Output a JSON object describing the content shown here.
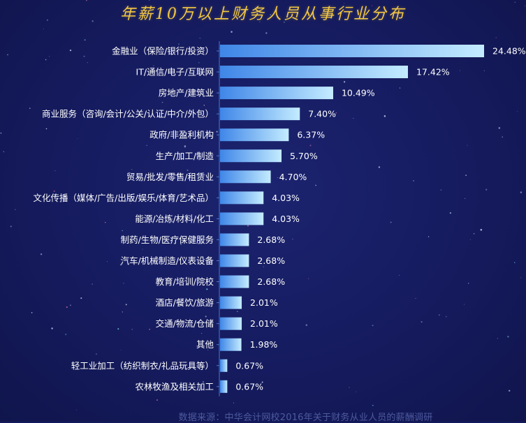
{
  "title": "年薪10万以上财务人员从事行业分布",
  "source_note": "数据来源：中华会计网校2016年关于财务从业人员的薪酬调研",
  "colors": {
    "background": "#141a5c",
    "bar_start": "#3f86e8",
    "bar_end": "#c4ecff",
    "title": "#f2c744",
    "label": "#ffffff",
    "axis": "#4a78c8",
    "source": "#4d5a9e"
  },
  "chart_data": {
    "type": "bar",
    "orientation": "horizontal",
    "title": "年薪10万以上财务人员从事行业分布",
    "categories": [
      "金融业（保险/银行/投资）",
      "IT/通信/电子/互联网",
      "房地产/建筑业",
      "商业服务（咨询/会计/公关/认证/中介/外包）",
      "政府/非盈利机构",
      "生产/加工/制造",
      "贸易/批发/零售/租赁业",
      "文化传播（媒体/广告/出版/娱乐/体育/艺术品）",
      "能源/冶炼/材料/化工",
      "制药/生物/医疗保健服务",
      "汽车/机械制造/仪表设备",
      "教育/培训/院校",
      "酒店/餐饮/旅游",
      "交通/物流/仓储",
      "其他",
      "轻工业加工（纺织制衣/礼品玩具等）",
      "农林牧渔及相关加工"
    ],
    "values": [
      24.48,
      17.42,
      10.49,
      7.4,
      6.37,
      5.7,
      4.7,
      4.03,
      4.03,
      2.68,
      2.68,
      2.68,
      2.01,
      2.01,
      1.98,
      0.67,
      0.67
    ],
    "value_labels": [
      "24.48%",
      "17.42%",
      "10.49%",
      "7.40%",
      "6.37%",
      "5.70%",
      "4.70%",
      "4.03%",
      "4.03%",
      "2.68%",
      "2.68%",
      "2.68%",
      "2.01%",
      "2.01%",
      "1.98%",
      "0.67%",
      "0.67%"
    ],
    "unit": "%",
    "xlim": [
      0,
      24.48
    ],
    "grid": false,
    "legend": "none",
    "source": "数据来源：中华会计网校2016年关于财务从业人员的薪酬调研"
  }
}
